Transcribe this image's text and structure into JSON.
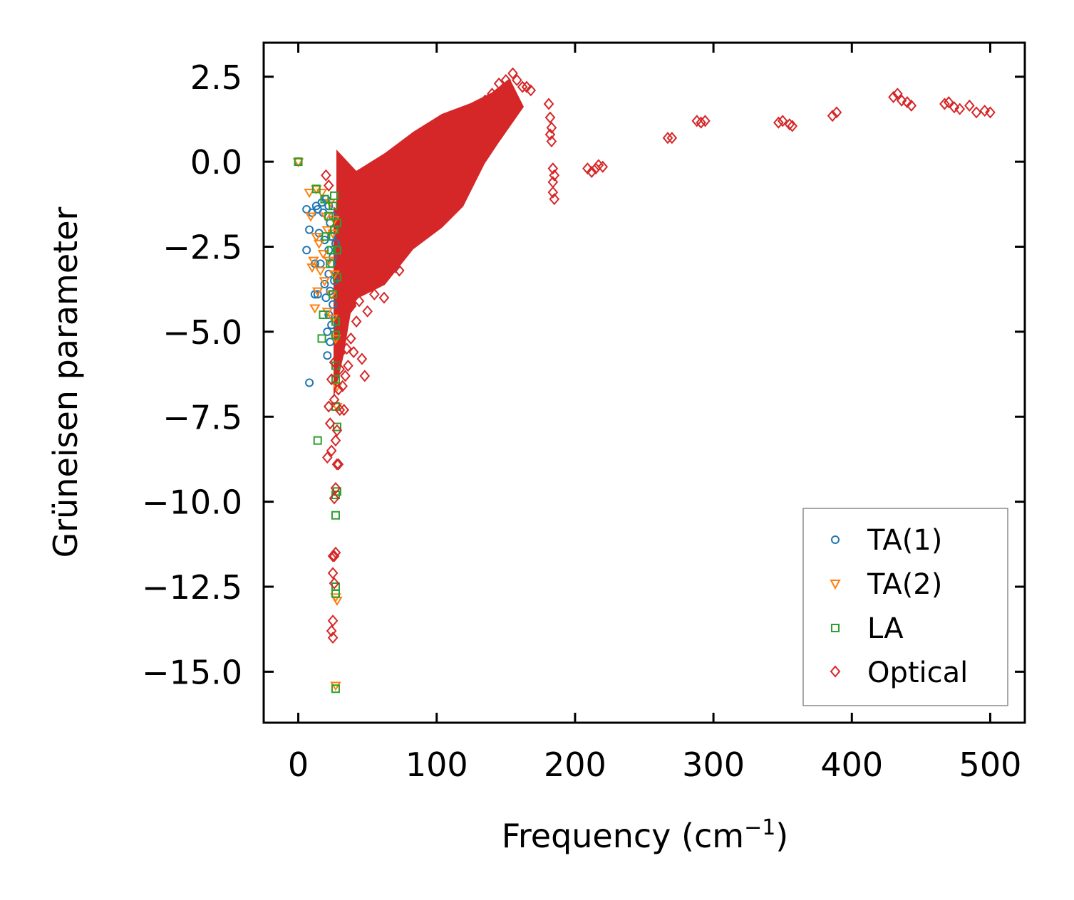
{
  "chart_data": {
    "type": "scatter",
    "title": "",
    "xlabel": "Frequency (cm",
    "xlabel_sup": "−1",
    "xlabel_close": ")",
    "ylabel": "Grüneisen parameter",
    "xlim": [
      -25,
      525
    ],
    "ylim": [
      -16.5,
      3.5
    ],
    "xticks": [
      0,
      100,
      200,
      300,
      400,
      500
    ],
    "xtick_labels": [
      "0",
      "100",
      "200",
      "300",
      "400",
      "500"
    ],
    "yticks": [
      2.5,
      0.0,
      -2.5,
      -5.0,
      -7.5,
      -10.0,
      -12.5,
      -15.0
    ],
    "ytick_labels": [
      "2.5",
      "0.0",
      "−2.5",
      "−5.0",
      "−7.5",
      "−10.0",
      "−12.5",
      "−15.0"
    ],
    "grid": false,
    "legend_position": "bottom-right",
    "series": [
      {
        "name": "TA(1)",
        "marker": "circle",
        "color": "#1f77b4",
        "points": [
          [
            0,
            0
          ],
          [
            6,
            -1.4
          ],
          [
            6,
            -2.6
          ],
          [
            8,
            -6.5
          ],
          [
            8,
            -2.0
          ],
          [
            10,
            -1.5
          ],
          [
            12,
            -3.9
          ],
          [
            12,
            -3.0
          ],
          [
            13,
            -1.3
          ],
          [
            14,
            -1.4
          ],
          [
            14,
            -3.9
          ],
          [
            15,
            -2.1
          ],
          [
            16,
            -3.0
          ],
          [
            17,
            -1.2
          ],
          [
            18,
            -1.5
          ],
          [
            19,
            -2.3
          ],
          [
            19,
            -3.6
          ],
          [
            20,
            -1.1
          ],
          [
            20,
            -4.0
          ],
          [
            21,
            -5.0
          ],
          [
            21,
            -5.7
          ],
          [
            22,
            -1.3
          ],
          [
            22,
            -2.6
          ],
          [
            22,
            -3.3
          ],
          [
            22,
            -4.5
          ],
          [
            23,
            -1.8
          ],
          [
            23,
            -3.8
          ],
          [
            23,
            -5.3
          ],
          [
            24,
            -2.2
          ],
          [
            24,
            -3.0
          ],
          [
            24,
            -4.8
          ],
          [
            25,
            -1.6
          ],
          [
            25,
            -4.2
          ],
          [
            25,
            -2.8
          ],
          [
            26,
            -2.0
          ],
          [
            26,
            -3.5
          ],
          [
            27,
            -2.4
          ]
        ]
      },
      {
        "name": "TA(2)",
        "marker": "triangle-down",
        "color": "#ff7f0e",
        "points": [
          [
            0,
            0
          ],
          [
            8,
            -0.9
          ],
          [
            9,
            -1.6
          ],
          [
            10,
            -3.1
          ],
          [
            11,
            -2.9
          ],
          [
            12,
            -4.3
          ],
          [
            13,
            -0.8
          ],
          [
            13,
            -2.2
          ],
          [
            14,
            -3.8
          ],
          [
            15,
            -2.4
          ],
          [
            16,
            -3.2
          ],
          [
            17,
            -0.9
          ],
          [
            18,
            -2.7
          ],
          [
            19,
            -3.5
          ],
          [
            20,
            -1.6
          ],
          [
            21,
            -2.0
          ],
          [
            21,
            -4.4
          ],
          [
            22,
            -2.9
          ],
          [
            23,
            -1.2
          ],
          [
            24,
            -3.9
          ],
          [
            25,
            -4.6
          ],
          [
            25,
            -2.1
          ],
          [
            26,
            -1.7
          ],
          [
            26,
            -3.3
          ],
          [
            27,
            -5.2
          ],
          [
            27,
            -15.4
          ],
          [
            27,
            -12.8
          ],
          [
            28,
            -6.6
          ],
          [
            28,
            -7.2
          ],
          [
            28,
            -12.9
          ]
        ]
      },
      {
        "name": "LA",
        "marker": "square",
        "color": "#2ca02c",
        "points": [
          [
            0,
            0
          ],
          [
            13,
            -0.8
          ],
          [
            14,
            -8.2
          ],
          [
            17,
            -5.2
          ],
          [
            18,
            -4.5
          ],
          [
            19,
            -1.1
          ],
          [
            20,
            -2.2
          ],
          [
            22,
            -1.6
          ],
          [
            23,
            -3.0
          ],
          [
            24,
            -2.6
          ],
          [
            25,
            -1.3
          ],
          [
            25,
            -3.9
          ],
          [
            26,
            -1.0
          ],
          [
            26,
            -2.0
          ],
          [
            27,
            -4.7
          ],
          [
            27,
            -5.1
          ],
          [
            27,
            -6.0
          ],
          [
            27,
            -6.4
          ],
          [
            27,
            -7.2
          ],
          [
            27,
            -9.8
          ],
          [
            27,
            -10.4
          ],
          [
            27,
            -12.5
          ],
          [
            27,
            -12.7
          ],
          [
            27,
            -15.5
          ],
          [
            28,
            -2.6
          ],
          [
            28,
            -1.8
          ],
          [
            28,
            -7.8
          ],
          [
            28,
            -9.7
          ],
          [
            28,
            -3.4
          ]
        ]
      },
      {
        "name": "Optical",
        "marker": "diamond",
        "color": "#d62728",
        "points": [
          [
            20,
            -0.4
          ],
          [
            21,
            -8.7
          ],
          [
            22,
            -7.2
          ],
          [
            22,
            -0.7
          ],
          [
            23,
            -7.7
          ],
          [
            24,
            -6.4
          ],
          [
            24,
            -8.5
          ],
          [
            24,
            -13.8
          ],
          [
            25,
            -11.6
          ],
          [
            25,
            -12.1
          ],
          [
            25,
            -14.0
          ],
          [
            25,
            -13.5
          ],
          [
            26,
            -11.6
          ],
          [
            26,
            -12.4
          ],
          [
            26,
            -9.9
          ],
          [
            26,
            -7.0
          ],
          [
            26,
            -5.9
          ],
          [
            27,
            -11.5
          ],
          [
            27,
            -9.6
          ],
          [
            27,
            -8.2
          ],
          [
            28,
            -7.9
          ],
          [
            28,
            -8.9
          ],
          [
            29,
            -8.9
          ],
          [
            29,
            -6.7
          ],
          [
            30,
            -7.3
          ],
          [
            30,
            -6.1
          ],
          [
            31,
            -5.6
          ],
          [
            32,
            -6.6
          ],
          [
            33,
            -7.3
          ],
          [
            34,
            -6.3
          ],
          [
            35,
            -5.5
          ],
          [
            36,
            -6.0
          ],
          [
            38,
            -5.2
          ],
          [
            40,
            -5.6
          ],
          [
            42,
            -4.7
          ],
          [
            44,
            -4.1
          ],
          [
            46,
            -5.8
          ],
          [
            46,
            -3.5
          ],
          [
            48,
            -6.3
          ],
          [
            50,
            -4.4
          ],
          [
            52,
            -3.6
          ],
          [
            55,
            -3.9
          ],
          [
            58,
            -3.5
          ],
          [
            62,
            -4.0
          ],
          [
            65,
            -3.3
          ],
          [
            70,
            -3.1
          ],
          [
            73,
            -3.2
          ],
          [
            77,
            -1.8
          ],
          [
            78,
            -0.9
          ],
          [
            80,
            -2.0
          ],
          [
            82,
            -1.4
          ],
          [
            85,
            -0.6
          ],
          [
            88,
            0.8
          ],
          [
            92,
            -1.0
          ],
          [
            95,
            -1.8
          ],
          [
            100,
            -1.2
          ],
          [
            105,
            -0.5
          ],
          [
            110,
            -1.2
          ],
          [
            115,
            0.2
          ],
          [
            120,
            1.0
          ],
          [
            128,
            1.5
          ],
          [
            135,
            1.8
          ],
          [
            140,
            2.0
          ],
          [
            145,
            2.3
          ],
          [
            150,
            2.4
          ],
          [
            155,
            2.6
          ],
          [
            158,
            2.4
          ],
          [
            162,
            2.2
          ],
          [
            165,
            2.2
          ],
          [
            168,
            2.1
          ],
          [
            181,
            1.7
          ],
          [
            182,
            1.3
          ],
          [
            182,
            0.8
          ],
          [
            183,
            0.6
          ],
          [
            183,
            1.0
          ],
          [
            184,
            -0.2
          ],
          [
            184,
            -0.6
          ],
          [
            184,
            -0.9
          ],
          [
            185,
            -1.1
          ],
          [
            185,
            -0.4
          ],
          [
            209,
            -0.2
          ],
          [
            212,
            -0.3
          ],
          [
            215,
            -0.2
          ],
          [
            217,
            -0.1
          ],
          [
            220,
            -0.15
          ],
          [
            267,
            0.7
          ],
          [
            270,
            0.7
          ],
          [
            288,
            1.2
          ],
          [
            291,
            1.15
          ],
          [
            294,
            1.2
          ],
          [
            347,
            1.15
          ],
          [
            350,
            1.2
          ],
          [
            355,
            1.1
          ],
          [
            357,
            1.05
          ],
          [
            386,
            1.35
          ],
          [
            389,
            1.45
          ],
          [
            430,
            1.9
          ],
          [
            433,
            2.0
          ],
          [
            436,
            1.8
          ],
          [
            440,
            1.75
          ],
          [
            443,
            1.65
          ],
          [
            467,
            1.7
          ],
          [
            470,
            1.75
          ],
          [
            474,
            1.6
          ],
          [
            478,
            1.55
          ],
          [
            485,
            1.65
          ],
          [
            490,
            1.45
          ],
          [
            496,
            1.5
          ],
          [
            500,
            1.45
          ]
        ]
      }
    ]
  }
}
